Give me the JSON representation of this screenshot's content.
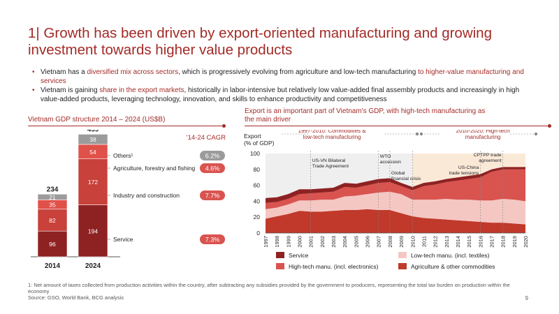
{
  "title": "1| Growth has been driven by export-oriented manufacturing and growing investment towards higher value products",
  "bullets": [
    {
      "parts": [
        {
          "t": "Vietnam has a ",
          "hl": false
        },
        {
          "t": "diversified mix across sectors",
          "hl": true
        },
        {
          "t": ", which is progressively evolving from agriculture and low-tech manufacturing ",
          "hl": false
        },
        {
          "t": "to higher-value manufacturing and services",
          "hl": true
        }
      ]
    },
    {
      "parts": [
        {
          "t": "Vietnam is gaining ",
          "hl": false
        },
        {
          "t": "share in the export markets",
          "hl": true
        },
        {
          "t": ", historically in labor-intensive but relatively low value-added final assembly products and increasingly in high value-added products, leveraging technology, innovation, and skills to enhance productivity and competitiveness",
          "hl": false
        }
      ]
    }
  ],
  "left_title": "Vietnam GDP structure 2014 – 2024 (US$B)",
  "right_title": "Export is an important part of Vietnam's GDP, with high-tech manufacturing as the main driver",
  "footer": [
    "1: Net amount of taxes collected from production activities within the country, after subtracting any subsidies provided by the government to producers, representing the total tax burden on production within the economy",
    "Source: GSO, World Bank, BCG analysis"
  ],
  "page_number": "9",
  "colors": {
    "accent": "#a32b27",
    "service": "#8e2222",
    "industry": "#c8413a",
    "agriculture": "#e0514a",
    "others": "#9b9b9b",
    "hightech": "#d9534f",
    "lowtech": "#f4c7c3",
    "agri_area": "#c0392b",
    "service_line": "#8e2222",
    "cagr_grey": "#9b9b9b",
    "cagr_red": "#d9534f"
  },
  "chart_data": [
    {
      "type": "bar",
      "stacked": true,
      "title": "Vietnam GDP structure 2014 – 2024 (US$B)",
      "categories": [
        "2014",
        "2024"
      ],
      "totals": [
        234,
        459
      ],
      "cagr_header": "'14-24 CAGR",
      "series": [
        {
          "name": "Service",
          "values": [
            96,
            194
          ],
          "cagr": "7.3%",
          "color": "service"
        },
        {
          "name": "Industry and construction",
          "values": [
            82,
            172
          ],
          "cagr": "7.7%",
          "color": "industry"
        },
        {
          "name": "Agriculture, forestry and fishing",
          "values": [
            35,
            54
          ],
          "cagr": "4.6%",
          "color": "agriculture"
        },
        {
          "name": "Others¹",
          "values": [
            21,
            38
          ],
          "cagr": "6.2%",
          "color": "others"
        }
      ]
    },
    {
      "type": "area",
      "stacked": true,
      "ylabel": "Export\n(% of GDP)",
      "ylim": [
        0,
        100
      ],
      "yticks": [
        0,
        20,
        40,
        60,
        80,
        100
      ],
      "x": [
        1997,
        1998,
        1999,
        2000,
        2001,
        2002,
        2003,
        2004,
        2005,
        2006,
        2007,
        2008,
        2009,
        2010,
        2011,
        2012,
        2013,
        2014,
        2015,
        2016,
        2017,
        2018,
        2019,
        2020
      ],
      "series": [
        {
          "name": "Agriculture & other commodities",
          "color": "agri_area",
          "values": [
            18,
            21,
            24,
            28,
            27,
            27,
            28,
            29,
            29,
            30,
            29,
            29,
            25,
            21,
            19,
            18,
            17,
            16,
            15,
            14,
            13,
            13,
            12,
            11
          ]
        },
        {
          "name": "Low-tech manu. (incl. textiles)",
          "color": "lowtech",
          "values": [
            12,
            11,
            12,
            13,
            14,
            15,
            14,
            17,
            18,
            19,
            22,
            23,
            24,
            21,
            23,
            24,
            26,
            26,
            27,
            27,
            28,
            30,
            30,
            29
          ]
        },
        {
          "name": "High-tech manu. (incl. electronics)",
          "color": "hightech",
          "values": [
            8,
            7,
            7,
            8,
            9,
            9,
            10,
            12,
            10,
            11,
            12,
            12,
            10,
            12,
            17,
            19,
            21,
            24,
            26,
            29,
            36,
            37,
            38,
            40
          ]
        },
        {
          "name": "Service",
          "color": "service_line",
          "values": [
            6,
            6,
            6,
            6,
            5,
            5,
            5,
            5,
            5,
            5,
            5,
            5,
            4,
            4,
            4,
            4,
            4,
            4,
            4,
            4,
            3,
            3,
            3,
            3
          ]
        }
      ],
      "periods": [
        {
          "label": "1997-2010: Commodities & low-tech manufacturing",
          "from": 1997,
          "to": 2010
        },
        {
          "label": "2010-2020: High-tech manufacturing",
          "from": 2010,
          "to": 2020
        }
      ],
      "events": [
        {
          "label": "US-VN Bilateral Trade Agreement",
          "year": 2001
        },
        {
          "label": "WTO accession",
          "year": 2007
        },
        {
          "label": "Global financial crisis",
          "year": 2008
        },
        {
          "label": "US-China trade tensions",
          "year": 2018
        },
        {
          "label": "CPTPP trade agreement",
          "year": 2018
        }
      ]
    }
  ]
}
